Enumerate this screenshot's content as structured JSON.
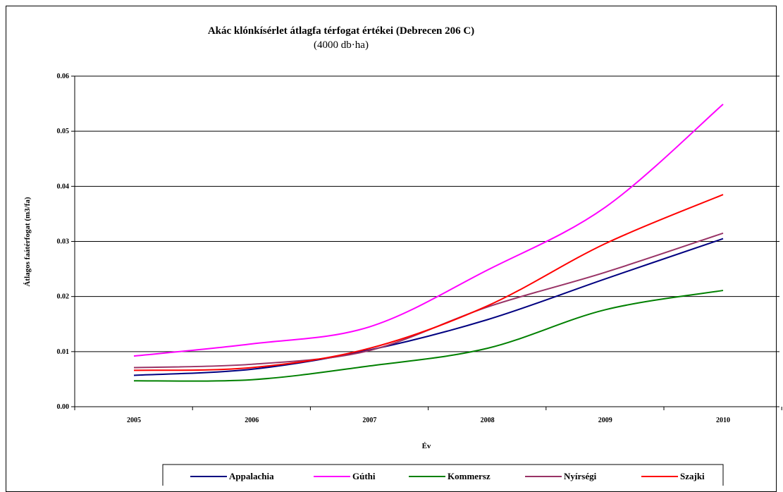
{
  "chart_data": {
    "type": "line",
    "title": "Akác klónkísérlet átlagfa térfogat értékei (Debrecen 206 C)",
    "subtitle": "(4000 db·ha)",
    "xlabel": "Év",
    "ylabel": "Átlagos faátérfogat (m3/fa)",
    "x": [
      2005,
      2006,
      2007,
      2008,
      2009,
      2010
    ],
    "x_tick_labels": [
      "2005",
      "2006",
      "2007",
      "2008",
      "2009",
      "2010"
    ],
    "ylim": [
      0,
      0.06
    ],
    "y_ticks": [
      0,
      0.01,
      0.02,
      0.03,
      0.04,
      0.05,
      0.06
    ],
    "y_tick_labels": [
      "0.00",
      "0.01",
      "0.02",
      "0.03",
      "0.04",
      "0.05",
      "0.06"
    ],
    "grid": true,
    "legend": "bottom",
    "series": [
      {
        "name": "Appalachia",
        "color": "#000080",
        "values": [
          0.0057,
          0.0068,
          0.0103,
          0.0158,
          0.0232,
          0.0305
        ]
      },
      {
        "name": "Gúthi",
        "color": "#ff00ff",
        "values": [
          0.0092,
          0.0114,
          0.0145,
          0.0248,
          0.0362,
          0.0549
        ]
      },
      {
        "name": "Kommersz",
        "color": "#008000",
        "values": [
          0.0047,
          0.0049,
          0.0074,
          0.0106,
          0.0176,
          0.0211
        ]
      },
      {
        "name": "Nyírségi",
        "color": "#993366",
        "values": [
          0.0071,
          0.0077,
          0.0102,
          0.0181,
          0.0244,
          0.0315
        ]
      },
      {
        "name": "Szajki",
        "color": "#ff0000",
        "values": [
          0.0066,
          0.0071,
          0.0106,
          0.0183,
          0.0296,
          0.0385
        ]
      }
    ]
  }
}
